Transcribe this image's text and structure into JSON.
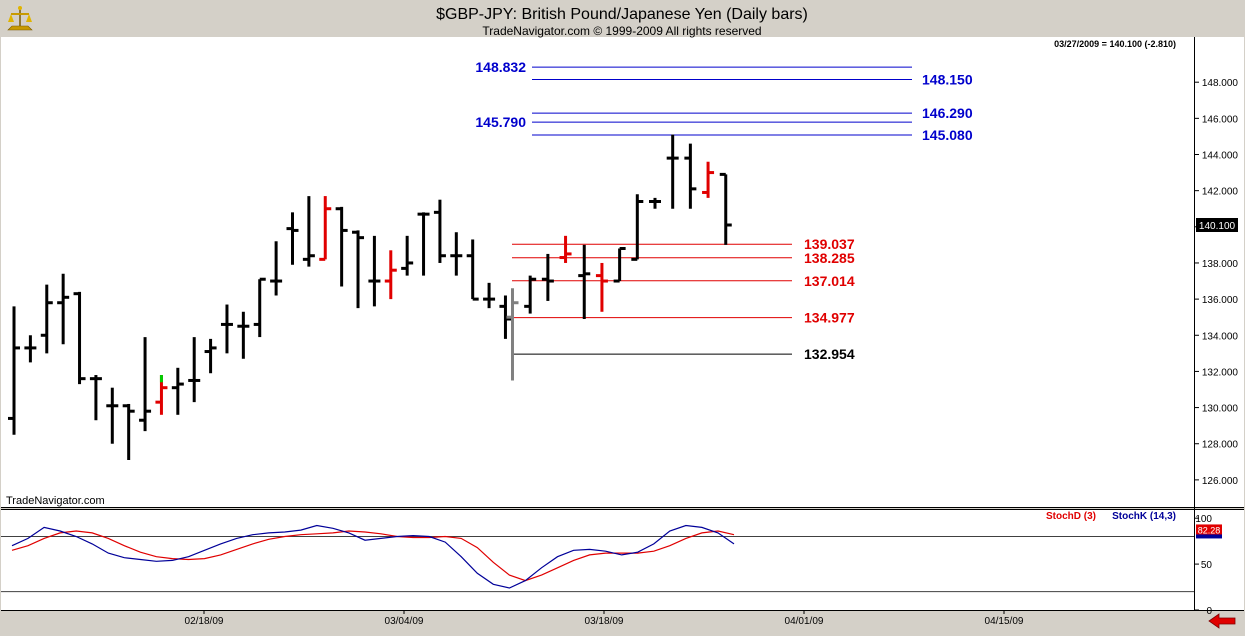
{
  "header": {
    "title": "$GBP-JPY:  British Pound/Japanese Yen  (Daily bars)",
    "copyright": "TradeNavigator.com © 1999-2009 All rights reserved",
    "status": "03/27/2009 = 140.100 (-2.810)"
  },
  "watermark": "TradeNavigator.com",
  "colors": {
    "up": "#000000",
    "down": "#e00000",
    "level_blue": "#0000cc",
    "level_red": "#e00000",
    "stoch_d": "#e00000",
    "stoch_k": "#000099"
  },
  "chart_data": [
    {
      "type": "ohlc",
      "ylim": [
        124.5,
        150.5
      ],
      "y_ticks": [
        "148.000",
        "146.000",
        "144.000",
        "142.000",
        "140.000",
        "138.000",
        "136.000",
        "134.000",
        "132.000",
        "130.000",
        "128.000",
        "126.000"
      ],
      "y_tick_values": [
        148,
        146,
        144,
        142,
        140,
        138,
        136,
        134,
        132,
        130,
        128,
        126
      ],
      "last_price_label": "140.100",
      "last_price": 140.1,
      "x_labels": [
        "02/18/09",
        "03/04/09",
        "03/18/09",
        "04/01/09",
        "04/15/09"
      ],
      "x_label_slots": [
        9,
        19,
        29,
        39,
        49
      ],
      "slots_total": 59,
      "bars": [
        {
          "o": 129.4,
          "h": 135.6,
          "l": 128.5,
          "c": 133.3,
          "t": "up"
        },
        {
          "o": 133.3,
          "h": 134.0,
          "l": 132.5,
          "c": 133.3,
          "t": "up"
        },
        {
          "o": 134.0,
          "h": 136.8,
          "l": 133.0,
          "c": 135.8,
          "t": "up"
        },
        {
          "o": 135.8,
          "h": 137.4,
          "l": 133.5,
          "c": 136.1,
          "t": "up"
        },
        {
          "o": 136.3,
          "h": 136.4,
          "l": 131.3,
          "c": 131.6,
          "t": "up"
        },
        {
          "o": 131.6,
          "h": 131.8,
          "l": 129.3,
          "c": 131.6,
          "t": "up"
        },
        {
          "o": 130.1,
          "h": 131.1,
          "l": 128.0,
          "c": 130.1,
          "t": "up"
        },
        {
          "o": 130.1,
          "h": 130.2,
          "l": 127.1,
          "c": 129.8,
          "t": "up"
        },
        {
          "o": 129.3,
          "h": 133.9,
          "l": 128.7,
          "c": 129.8,
          "t": "up"
        },
        {
          "o": 130.3,
          "h": 131.8,
          "l": 129.6,
          "c": 131.1,
          "t": "down",
          "hi": 131.4
        },
        {
          "o": 131.1,
          "h": 132.2,
          "l": 129.6,
          "c": 131.3,
          "t": "up"
        },
        {
          "o": 131.5,
          "h": 133.9,
          "l": 130.3,
          "c": 131.5,
          "t": "up"
        },
        {
          "o": 133.1,
          "h": 133.8,
          "l": 131.9,
          "c": 133.3,
          "t": "up"
        },
        {
          "o": 134.6,
          "h": 135.7,
          "l": 133.0,
          "c": 134.6,
          "t": "up"
        },
        {
          "o": 134.5,
          "h": 135.3,
          "l": 132.7,
          "c": 134.5,
          "t": "up"
        },
        {
          "o": 134.6,
          "h": 137.1,
          "l": 133.9,
          "c": 137.1,
          "t": "up"
        },
        {
          "o": 137.0,
          "h": 139.2,
          "l": 136.2,
          "c": 137.0,
          "t": "up"
        },
        {
          "o": 139.9,
          "h": 140.8,
          "l": 137.9,
          "c": 139.8,
          "t": "up"
        },
        {
          "o": 138.2,
          "h": 141.7,
          "l": 137.8,
          "c": 138.4,
          "t": "up"
        },
        {
          "o": 138.2,
          "h": 141.7,
          "l": 138.2,
          "c": 141.0,
          "t": "down"
        },
        {
          "o": 141.0,
          "h": 141.1,
          "l": 136.7,
          "c": 139.8,
          "t": "up"
        },
        {
          "o": 139.7,
          "h": 139.8,
          "l": 135.5,
          "c": 139.4,
          "t": "up"
        },
        {
          "o": 137.0,
          "h": 139.5,
          "l": 135.6,
          "c": 137.0,
          "t": "up"
        },
        {
          "o": 137.0,
          "h": 138.7,
          "l": 136.0,
          "c": 137.6,
          "t": "down"
        },
        {
          "o": 137.7,
          "h": 139.5,
          "l": 137.3,
          "c": 138.0,
          "t": "up"
        },
        {
          "o": 140.7,
          "h": 140.8,
          "l": 137.3,
          "c": 140.7,
          "t": "up"
        },
        {
          "o": 140.8,
          "h": 141.5,
          "l": 138.0,
          "c": 138.4,
          "t": "up"
        },
        {
          "o": 138.4,
          "h": 139.7,
          "l": 137.3,
          "c": 138.4,
          "t": "up"
        },
        {
          "o": 138.4,
          "h": 139.3,
          "l": 136.0,
          "c": 136.0,
          "t": "up"
        },
        {
          "o": 136.0,
          "h": 136.9,
          "l": 135.5,
          "c": 136.0,
          "t": "up"
        },
        {
          "o": 135.6,
          "h": 136.2,
          "l": 133.8,
          "c": 134.9,
          "t": "up"
        }
      ],
      "bars2": [
        {
          "o": 135.0,
          "h": 136.6,
          "l": 131.5,
          "c": 135.8,
          "t": "gray"
        },
        {
          "o": 135.6,
          "h": 137.3,
          "l": 135.2,
          "c": 137.1,
          "t": "up"
        },
        {
          "o": 137.1,
          "h": 138.5,
          "l": 135.9,
          "c": 137.0,
          "t": "up"
        },
        {
          "o": 138.3,
          "h": 139.5,
          "l": 138.0,
          "c": 138.5,
          "t": "down"
        },
        {
          "o": 137.3,
          "h": 139.0,
          "l": 134.9,
          "c": 137.4,
          "t": "up"
        },
        {
          "o": 137.3,
          "h": 138.0,
          "l": 135.3,
          "c": 137.0,
          "t": "down"
        },
        {
          "o": 137.0,
          "h": 138.8,
          "l": 137.0,
          "c": 138.8,
          "t": "up"
        },
        {
          "o": 138.2,
          "h": 141.8,
          "l": 138.2,
          "c": 141.4,
          "t": "up"
        },
        {
          "o": 141.4,
          "h": 141.6,
          "l": 141.0,
          "c": 141.4,
          "t": "up"
        },
        {
          "o": 143.8,
          "h": 145.1,
          "l": 141.0,
          "c": 143.8,
          "t": "up"
        },
        {
          "o": 143.8,
          "h": 144.6,
          "l": 141.0,
          "c": 142.1,
          "t": "up"
        },
        {
          "o": 141.9,
          "h": 143.6,
          "l": 141.6,
          "c": 143.0,
          "t": "down"
        },
        {
          "o": 142.9,
          "h": 142.9,
          "l": 139.0,
          "c": 140.1,
          "t": "up"
        }
      ],
      "levels": [
        {
          "label": "148.832",
          "value": 148.832,
          "side": "left",
          "color": "blue",
          "from": 26.2,
          "to": 45.0
        },
        {
          "label": "148.150",
          "value": 148.15,
          "side": "right",
          "color": "blue",
          "from": 26.2,
          "to": 45.0
        },
        {
          "label": "146.290",
          "value": 146.29,
          "side": "right",
          "color": "blue",
          "from": 26.2,
          "to": 45.0
        },
        {
          "label": "145.790",
          "value": 145.79,
          "side": "left",
          "color": "blue",
          "from": 26.2,
          "to": 45.0
        },
        {
          "label": "145.080",
          "value": 145.08,
          "side": "right",
          "color": "blue",
          "from": 26.2,
          "to": 45.0
        },
        {
          "label": "139.037",
          "value": 139.037,
          "side": "right",
          "color": "red",
          "from": 25.0,
          "to": 39.0
        },
        {
          "label": "138.285",
          "value": 138.285,
          "side": "right",
          "color": "red",
          "from": 25.0,
          "to": 39.0
        },
        {
          "label": "137.014",
          "value": 137.014,
          "side": "right",
          "color": "red",
          "from": 25.0,
          "to": 39.0
        },
        {
          "label": "134.977",
          "value": 134.977,
          "side": "right",
          "color": "red",
          "from": 25.0,
          "to": 39.0
        },
        {
          "label": "132.954",
          "value": 132.954,
          "side": "right",
          "color": "black",
          "from": 25.0,
          "to": 39.0
        }
      ]
    },
    {
      "type": "line",
      "legend": [
        "StochD (3)",
        "StochK (14,3)"
      ],
      "ylim": [
        0,
        110
      ],
      "y_ticks": [
        "100",
        "50",
        "0"
      ],
      "y_tick_values": [
        100,
        50,
        0
      ],
      "ref_lines": [
        80,
        20
      ],
      "last_value_label": "82.28",
      "series": [
        {
          "name": "StochD (3)",
          "values": [
            65,
            70,
            78,
            84,
            86,
            84,
            78,
            70,
            63,
            58,
            56,
            55,
            56,
            60,
            66,
            72,
            77,
            80,
            82,
            83,
            84,
            86,
            85,
            83,
            80,
            79,
            79,
            80,
            78,
            68,
            52,
            38,
            32,
            38,
            46,
            54,
            60,
            62,
            62,
            62,
            64,
            70,
            78,
            84,
            86,
            82
          ]
        },
        {
          "name": "StochK (14,3)",
          "values": [
            70,
            78,
            90,
            86,
            80,
            72,
            62,
            57,
            55,
            53,
            54,
            58,
            65,
            72,
            78,
            82,
            84,
            85,
            87,
            92,
            89,
            84,
            76,
            78,
            80,
            81,
            80,
            74,
            58,
            40,
            28,
            24,
            32,
            46,
            58,
            65,
            66,
            64,
            60,
            63,
            72,
            86,
            92,
            90,
            84,
            72
          ]
        }
      ]
    }
  ]
}
